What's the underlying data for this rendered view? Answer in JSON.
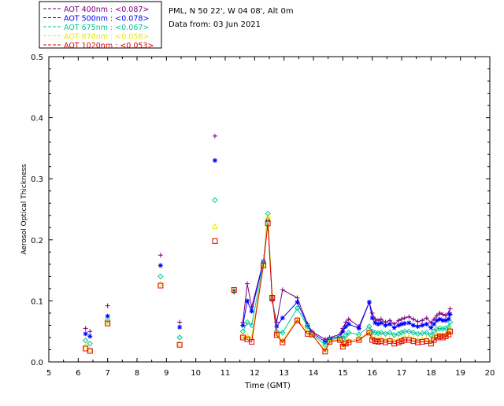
{
  "site_title": "PML, N 50 22', W 04 08', Alt 0m",
  "data_date": "Data from: 03 Jun 2021",
  "chart_data": {
    "type": "scatter",
    "xlabel": "Time (GMT)",
    "ylabel": "Aerosol Optical Thickness",
    "xlim": [
      5,
      20
    ],
    "ylim": [
      0,
      0.5
    ],
    "x_ticks": [
      "5",
      "6",
      "7",
      "8",
      "9",
      "10",
      "11",
      "12",
      "13",
      "14",
      "15",
      "16",
      "17",
      "18",
      "19",
      "20"
    ],
    "y_ticks": [
      "0.0",
      "0.1",
      "0.2",
      "0.3",
      "0.4",
      "0.5"
    ],
    "legend_position": "top-left, outside plot",
    "series": [
      {
        "name": "AOT  400nm : <0.087>",
        "color": "#7a007a",
        "marker": "plus",
        "connect_after": 11.5,
        "points": [
          [
            6.25,
            0.055
          ],
          [
            6.4,
            0.05
          ],
          [
            7.0,
            0.092
          ],
          [
            8.8,
            0.175
          ],
          [
            9.45,
            0.065
          ],
          [
            10.65,
            0.37
          ],
          [
            11.3,
            0.115
          ],
          [
            11.6,
            0.065
          ],
          [
            11.75,
            0.128
          ],
          [
            11.9,
            0.09
          ],
          [
            12.3,
            0.165
          ],
          [
            12.45,
            0.235
          ],
          [
            12.6,
            0.1
          ],
          [
            12.75,
            0.065
          ],
          [
            12.95,
            0.118
          ],
          [
            13.45,
            0.105
          ],
          [
            13.8,
            0.062
          ],
          [
            13.95,
            0.05
          ],
          [
            14.4,
            0.037
          ],
          [
            14.55,
            0.04
          ],
          [
            14.9,
            0.045
          ],
          [
            15.0,
            0.055
          ],
          [
            15.1,
            0.065
          ],
          [
            15.2,
            0.07
          ],
          [
            15.55,
            0.058
          ],
          [
            15.9,
            0.098
          ],
          [
            16.0,
            0.08
          ],
          [
            16.1,
            0.07
          ],
          [
            16.2,
            0.068
          ],
          [
            16.3,
            0.07
          ],
          [
            16.45,
            0.065
          ],
          [
            16.6,
            0.068
          ],
          [
            16.75,
            0.062
          ],
          [
            16.9,
            0.068
          ],
          [
            17.0,
            0.07
          ],
          [
            17.1,
            0.072
          ],
          [
            17.25,
            0.074
          ],
          [
            17.4,
            0.07
          ],
          [
            17.55,
            0.066
          ],
          [
            17.7,
            0.068
          ],
          [
            17.85,
            0.072
          ],
          [
            18.0,
            0.064
          ],
          [
            18.1,
            0.07
          ],
          [
            18.2,
            0.076
          ],
          [
            18.3,
            0.08
          ],
          [
            18.4,
            0.078
          ],
          [
            18.5,
            0.076
          ],
          [
            18.6,
            0.08
          ],
          [
            18.65,
            0.087
          ]
        ]
      },
      {
        "name": "AOT  500nm : <0.078>",
        "color": "#0000ff",
        "marker": "asterisk",
        "connect_after": 11.5,
        "points": [
          [
            6.25,
            0.046
          ],
          [
            6.4,
            0.042
          ],
          [
            7.0,
            0.075
          ],
          [
            8.8,
            0.158
          ],
          [
            9.45,
            0.057
          ],
          [
            10.65,
            0.33
          ],
          [
            11.3,
            0.117
          ],
          [
            11.6,
            0.06
          ],
          [
            11.75,
            0.1
          ],
          [
            11.9,
            0.083
          ],
          [
            12.3,
            0.165
          ],
          [
            12.45,
            0.232
          ],
          [
            12.6,
            0.105
          ],
          [
            12.75,
            0.058
          ],
          [
            12.95,
            0.072
          ],
          [
            13.45,
            0.098
          ],
          [
            13.8,
            0.06
          ],
          [
            13.95,
            0.048
          ],
          [
            14.4,
            0.033
          ],
          [
            14.55,
            0.038
          ],
          [
            14.9,
            0.042
          ],
          [
            15.0,
            0.05
          ],
          [
            15.1,
            0.058
          ],
          [
            15.2,
            0.062
          ],
          [
            15.55,
            0.055
          ],
          [
            15.9,
            0.098
          ],
          [
            16.0,
            0.072
          ],
          [
            16.1,
            0.064
          ],
          [
            16.2,
            0.062
          ],
          [
            16.3,
            0.064
          ],
          [
            16.45,
            0.06
          ],
          [
            16.6,
            0.062
          ],
          [
            16.75,
            0.056
          ],
          [
            16.9,
            0.06
          ],
          [
            17.0,
            0.062
          ],
          [
            17.1,
            0.063
          ],
          [
            17.25,
            0.064
          ],
          [
            17.4,
            0.06
          ],
          [
            17.55,
            0.058
          ],
          [
            17.7,
            0.06
          ],
          [
            17.85,
            0.062
          ],
          [
            18.0,
            0.056
          ],
          [
            18.1,
            0.062
          ],
          [
            18.2,
            0.068
          ],
          [
            18.3,
            0.07
          ],
          [
            18.4,
            0.068
          ],
          [
            18.5,
            0.068
          ],
          [
            18.6,
            0.07
          ],
          [
            18.65,
            0.078
          ]
        ]
      },
      {
        "name": "AOT  675nm : <0.067>",
        "color": "#00c896",
        "marker": "diamond",
        "connect_after": 11.5,
        "points": [
          [
            6.25,
            0.035
          ],
          [
            6.4,
            0.03
          ],
          [
            7.0,
            0.068
          ],
          [
            8.8,
            0.14
          ],
          [
            9.45,
            0.04
          ],
          [
            10.65,
            0.265
          ],
          [
            11.3,
            0.115
          ],
          [
            11.6,
            0.05
          ],
          [
            11.75,
            0.065
          ],
          [
            11.9,
            0.06
          ],
          [
            12.3,
            0.163
          ],
          [
            12.45,
            0.243
          ],
          [
            12.6,
            0.107
          ],
          [
            12.75,
            0.05
          ],
          [
            12.95,
            0.048
          ],
          [
            13.45,
            0.088
          ],
          [
            13.8,
            0.058
          ],
          [
            13.95,
            0.046
          ],
          [
            14.4,
            0.028
          ],
          [
            14.55,
            0.036
          ],
          [
            14.9,
            0.04
          ],
          [
            15.0,
            0.038
          ],
          [
            15.1,
            0.043
          ],
          [
            15.2,
            0.048
          ],
          [
            15.55,
            0.045
          ],
          [
            15.9,
            0.058
          ],
          [
            16.0,
            0.05
          ],
          [
            16.1,
            0.048
          ],
          [
            16.2,
            0.047
          ],
          [
            16.3,
            0.048
          ],
          [
            16.45,
            0.046
          ],
          [
            16.6,
            0.048
          ],
          [
            16.75,
            0.044
          ],
          [
            16.9,
            0.046
          ],
          [
            17.0,
            0.048
          ],
          [
            17.1,
            0.05
          ],
          [
            17.25,
            0.05
          ],
          [
            17.4,
            0.048
          ],
          [
            17.55,
            0.046
          ],
          [
            17.7,
            0.047
          ],
          [
            17.85,
            0.048
          ],
          [
            18.0,
            0.044
          ],
          [
            18.1,
            0.05
          ],
          [
            18.2,
            0.054
          ],
          [
            18.3,
            0.055
          ],
          [
            18.4,
            0.054
          ],
          [
            18.5,
            0.055
          ],
          [
            18.6,
            0.057
          ],
          [
            18.65,
            0.065
          ]
        ]
      },
      {
        "name": "AOT  870nm : <0.058>",
        "color": "#e8e800",
        "marker": "triangle",
        "connect_after": 11.5,
        "points": [
          [
            6.25,
            0.026
          ],
          [
            6.4,
            0.02
          ],
          [
            7.0,
            0.065
          ],
          [
            8.8,
            0.128
          ],
          [
            9.45,
            0.03
          ],
          [
            10.65,
            0.222
          ],
          [
            11.3,
            0.118
          ],
          [
            11.6,
            0.042
          ],
          [
            11.75,
            0.042
          ],
          [
            11.9,
            0.04
          ],
          [
            12.3,
            0.16
          ],
          [
            12.45,
            0.238
          ],
          [
            12.6,
            0.108
          ],
          [
            12.75,
            0.046
          ],
          [
            12.95,
            0.035
          ],
          [
            13.45,
            0.07
          ],
          [
            13.8,
            0.05
          ],
          [
            13.95,
            0.044
          ],
          [
            14.4,
            0.02
          ],
          [
            14.55,
            0.034
          ],
          [
            14.9,
            0.038
          ],
          [
            15.0,
            0.028
          ],
          [
            15.1,
            0.032
          ],
          [
            15.2,
            0.035
          ],
          [
            15.55,
            0.038
          ],
          [
            15.9,
            0.05
          ],
          [
            16.0,
            0.04
          ],
          [
            16.1,
            0.038
          ],
          [
            16.2,
            0.037
          ],
          [
            16.3,
            0.038
          ],
          [
            16.45,
            0.036
          ],
          [
            16.6,
            0.038
          ],
          [
            16.75,
            0.034
          ],
          [
            16.9,
            0.036
          ],
          [
            17.0,
            0.038
          ],
          [
            17.1,
            0.04
          ],
          [
            17.25,
            0.04
          ],
          [
            17.4,
            0.038
          ],
          [
            17.55,
            0.036
          ],
          [
            17.7,
            0.037
          ],
          [
            17.85,
            0.038
          ],
          [
            18.0,
            0.034
          ],
          [
            18.1,
            0.04
          ],
          [
            18.2,
            0.044
          ],
          [
            18.3,
            0.045
          ],
          [
            18.4,
            0.044
          ],
          [
            18.5,
            0.045
          ],
          [
            18.6,
            0.048
          ],
          [
            18.65,
            0.054
          ]
        ]
      },
      {
        "name": "AOT 1020nm : <0.053>",
        "color": "#e00000",
        "marker": "square",
        "connect_after": 11.5,
        "points": [
          [
            6.25,
            0.022
          ],
          [
            6.4,
            0.018
          ],
          [
            7.0,
            0.063
          ],
          [
            8.8,
            0.125
          ],
          [
            9.45,
            0.028
          ],
          [
            10.65,
            0.198
          ],
          [
            11.3,
            0.118
          ],
          [
            11.6,
            0.04
          ],
          [
            11.75,
            0.037
          ],
          [
            11.9,
            0.033
          ],
          [
            12.3,
            0.158
          ],
          [
            12.45,
            0.227
          ],
          [
            12.6,
            0.105
          ],
          [
            12.75,
            0.044
          ],
          [
            12.95,
            0.032
          ],
          [
            13.45,
            0.068
          ],
          [
            13.8,
            0.046
          ],
          [
            13.95,
            0.045
          ],
          [
            14.4,
            0.017
          ],
          [
            14.55,
            0.033
          ],
          [
            14.9,
            0.036
          ],
          [
            15.0,
            0.025
          ],
          [
            15.1,
            0.03
          ],
          [
            15.2,
            0.032
          ],
          [
            15.55,
            0.036
          ],
          [
            15.9,
            0.048
          ],
          [
            16.0,
            0.036
          ],
          [
            16.1,
            0.034
          ],
          [
            16.2,
            0.033
          ],
          [
            16.3,
            0.034
          ],
          [
            16.45,
            0.032
          ],
          [
            16.6,
            0.034
          ],
          [
            16.75,
            0.03
          ],
          [
            16.9,
            0.032
          ],
          [
            17.0,
            0.034
          ],
          [
            17.1,
            0.036
          ],
          [
            17.25,
            0.036
          ],
          [
            17.4,
            0.034
          ],
          [
            17.55,
            0.032
          ],
          [
            17.7,
            0.033
          ],
          [
            17.85,
            0.034
          ],
          [
            18.0,
            0.03
          ],
          [
            18.1,
            0.036
          ],
          [
            18.2,
            0.04
          ],
          [
            18.3,
            0.042
          ],
          [
            18.4,
            0.04
          ],
          [
            18.5,
            0.042
          ],
          [
            18.6,
            0.045
          ],
          [
            18.65,
            0.05
          ]
        ]
      }
    ]
  }
}
